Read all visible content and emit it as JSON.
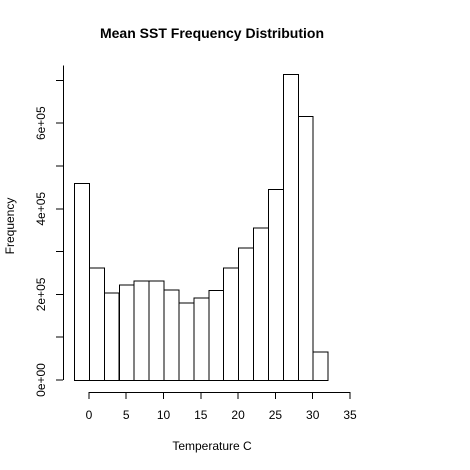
{
  "chart_data": {
    "type": "bar",
    "title": "Mean SST Frequency Distribution",
    "xlabel": "Temperature C",
    "ylabel": "Frequency",
    "bins": [
      {
        "start": -2,
        "end": 0,
        "value": 460000
      },
      {
        "start": 0,
        "end": 2,
        "value": 263000
      },
      {
        "start": 2,
        "end": 4,
        "value": 204000
      },
      {
        "start": 4,
        "end": 6,
        "value": 223000
      },
      {
        "start": 6,
        "end": 8,
        "value": 232000
      },
      {
        "start": 8,
        "end": 10,
        "value": 232000
      },
      {
        "start": 10,
        "end": 12,
        "value": 212000
      },
      {
        "start": 12,
        "end": 14,
        "value": 181000
      },
      {
        "start": 14,
        "end": 16,
        "value": 193000
      },
      {
        "start": 16,
        "end": 18,
        "value": 210000
      },
      {
        "start": 18,
        "end": 20,
        "value": 263000
      },
      {
        "start": 20,
        "end": 22,
        "value": 310000
      },
      {
        "start": 22,
        "end": 24,
        "value": 356000
      },
      {
        "start": 24,
        "end": 26,
        "value": 446000
      },
      {
        "start": 26,
        "end": 28,
        "value": 715000
      },
      {
        "start": 28,
        "end": 30,
        "value": 617000
      },
      {
        "start": 30,
        "end": 32,
        "value": 67000
      }
    ],
    "xlim": [
      -2,
      35
    ],
    "ylim": [
      0,
      715000
    ],
    "x_ticks": [
      0,
      5,
      10,
      15,
      20,
      25,
      30,
      35
    ],
    "x_tick_labels": [
      "0",
      "5",
      "10",
      "15",
      "20",
      "25",
      "30",
      "35"
    ],
    "y_ticks": [
      0,
      200000,
      400000,
      600000
    ],
    "y_tick_labels": [
      "0e+00",
      "2e+05",
      "4e+05",
      "6e+05"
    ],
    "grid": false,
    "bar_fill": "#ffffff",
    "bar_stroke": "#000000"
  }
}
